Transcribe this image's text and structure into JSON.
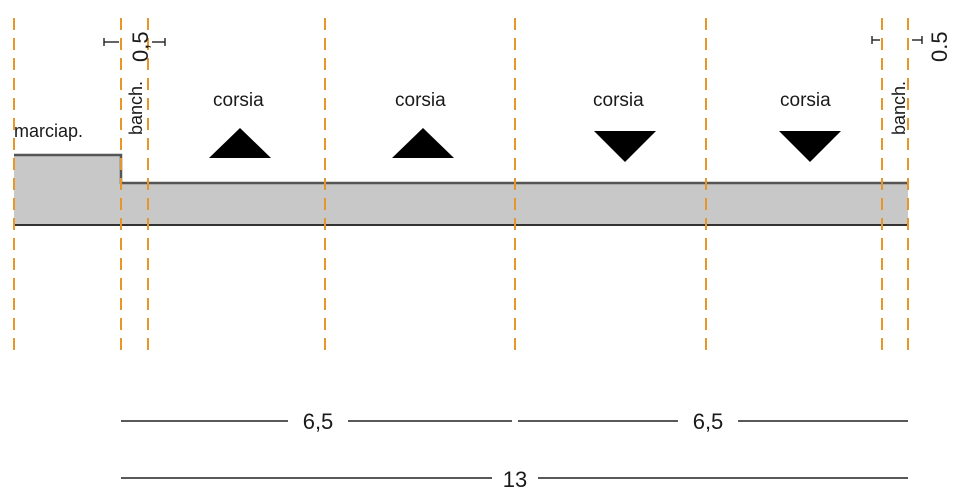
{
  "labels": {
    "sidewalk": "marciap.",
    "shoulder_left": "banch.",
    "shoulder_right": "banch.",
    "lanes": [
      "corsia",
      "corsia",
      "corsia",
      "corsia"
    ],
    "width_left": "0,5",
    "width_right": "0.5"
  },
  "dimensions": {
    "half_left": "6,5",
    "half_right": "6,5",
    "total": "13"
  },
  "lane_directions": [
    "up",
    "up",
    "down",
    "down"
  ],
  "colors": {
    "axis_lines": "#e8952a",
    "deck_fill": "#c8c8c8",
    "deck_stroke": "#555555",
    "arrow": "#000000"
  }
}
